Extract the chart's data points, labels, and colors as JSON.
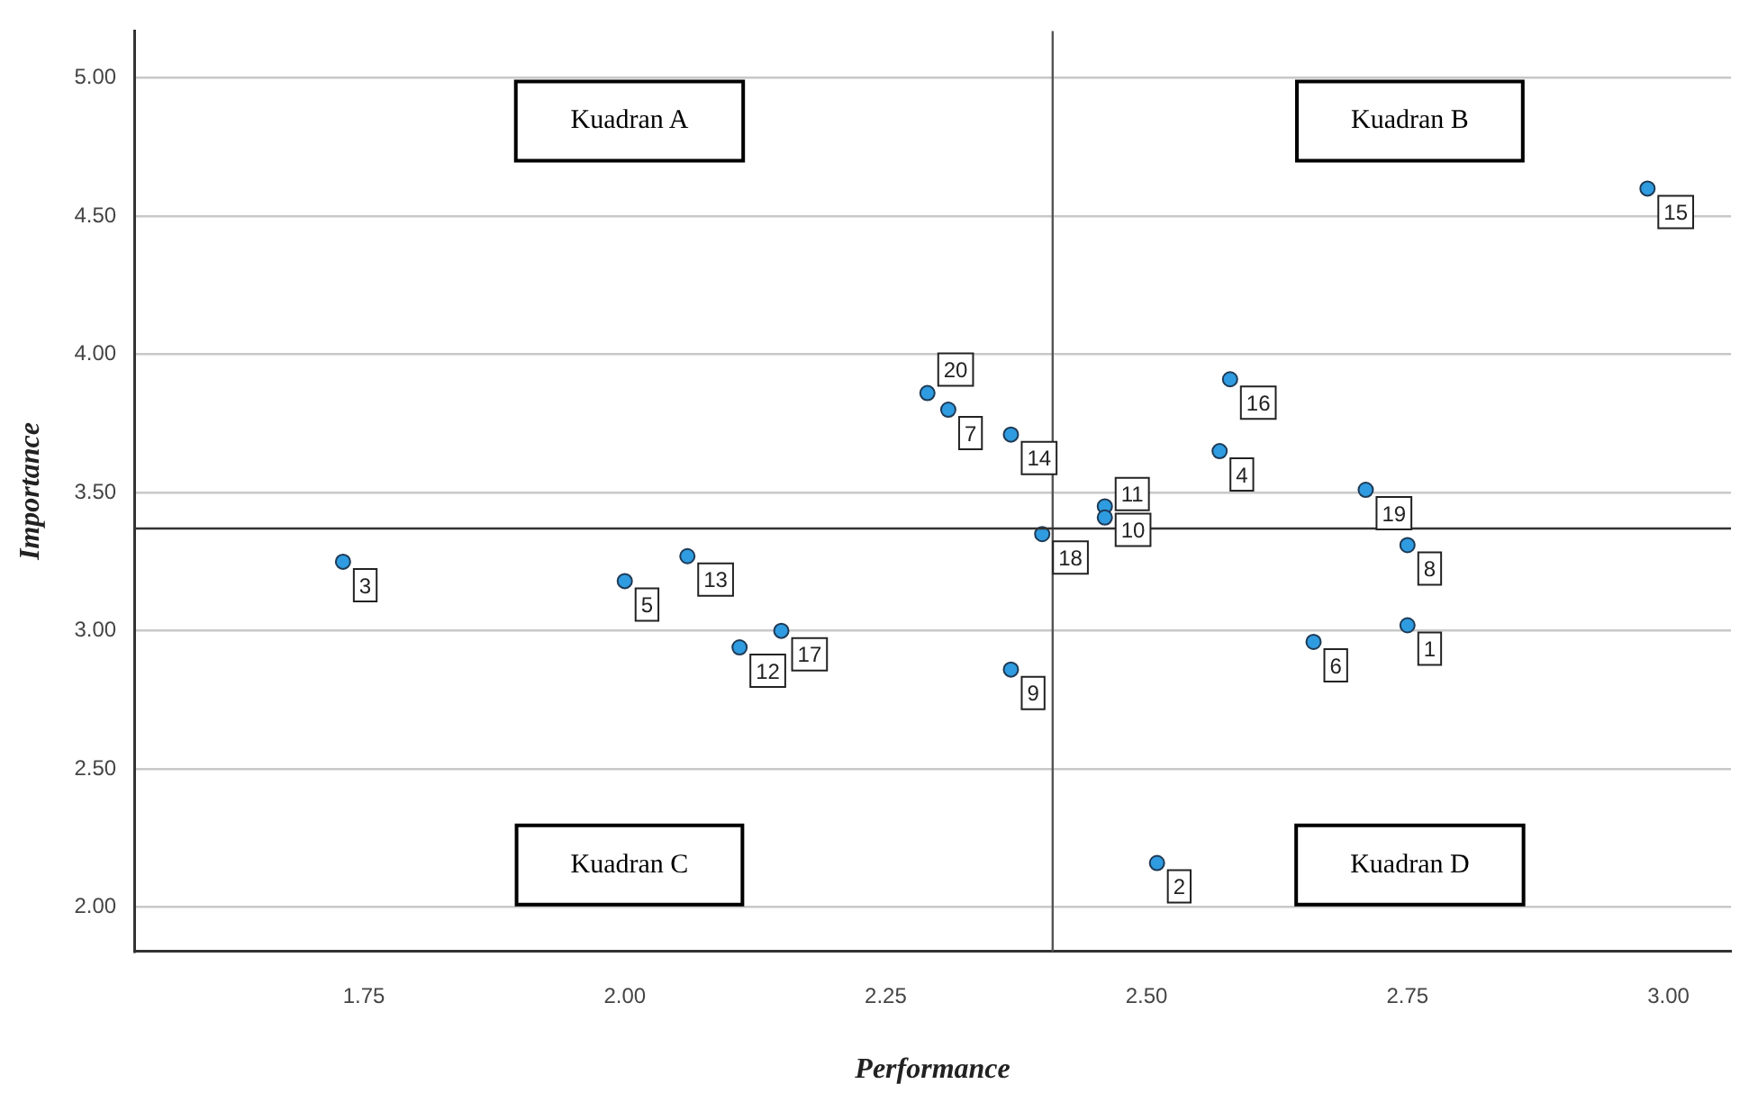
{
  "chart_data": {
    "type": "scatter",
    "xlabel": "Performance",
    "ylabel": "Importance",
    "series": [
      {
        "color": "#2f9be0",
        "x": [
          2.75,
          2.51,
          1.73,
          2.57,
          2.0,
          2.66,
          2.31,
          2.75,
          2.37,
          2.46,
          2.46,
          2.11,
          2.06,
          2.37,
          2.98,
          2.58,
          2.15,
          2.4,
          2.71,
          2.29
        ],
        "values": [
          3.02,
          2.16,
          3.25,
          3.65,
          3.18,
          2.96,
          3.8,
          3.31,
          2.86,
          3.45,
          3.41,
          2.94,
          3.27,
          3.71,
          4.6,
          3.91,
          3.0,
          3.35,
          3.51,
          3.86
        ]
      }
    ],
    "annotations": [
      "Kuadran A",
      "Kuadran B",
      "Kuadran C",
      "Kuadran D",
      {
        "text": "1",
        "x": 2.75,
        "y": 3.02
      },
      {
        "text": "2",
        "x": 2.51,
        "y": 2.16
      },
      {
        "text": "3",
        "x": 1.73,
        "y": 3.25
      },
      {
        "text": "4",
        "x": 2.57,
        "y": 3.65
      },
      {
        "text": "5",
        "x": 2.0,
        "y": 3.18
      },
      {
        "text": "6",
        "x": 2.66,
        "y": 2.96
      },
      {
        "text": "7",
        "x": 2.31,
        "y": 3.8
      },
      {
        "text": "8",
        "x": 2.75,
        "y": 3.31
      },
      {
        "text": "9",
        "x": 2.37,
        "y": 2.86
      },
      {
        "text": "10",
        "x": 2.46,
        "y": 3.45
      },
      {
        "text": "11",
        "x": 2.46,
        "y": 3.41
      },
      {
        "text": "12",
        "x": 2.11,
        "y": 2.94
      },
      {
        "text": "13",
        "x": 2.06,
        "y": 3.27
      },
      {
        "text": "14",
        "x": 2.37,
        "y": 3.71
      },
      {
        "text": "15",
        "x": 2.98,
        "y": 4.6
      },
      {
        "text": "16",
        "x": 2.58,
        "y": 3.91
      },
      {
        "text": "17",
        "x": 2.15,
        "y": 3.0
      },
      {
        "text": "18",
        "x": 2.4,
        "y": 3.35
      },
      {
        "text": "19",
        "x": 2.71,
        "y": 3.51
      },
      {
        "text": "20",
        "x": 2.29,
        "y": 3.86
      }
    ],
    "ref_lines": [
      {
        "axis": "x",
        "value": 2.41,
        "color": "#555555"
      },
      {
        "axis": "y",
        "value": 3.37,
        "color": "#333333"
      }
    ],
    "xlim": [
      1.53,
      3.06
    ],
    "ylim": [
      1.84,
      5.17
    ],
    "xticks": [
      {
        "value": 1.75,
        "label": "1.75"
      },
      {
        "value": 2,
        "label": "2.00"
      },
      {
        "value": 2.25,
        "label": "2.25"
      },
      {
        "value": 2.5,
        "label": "2.50"
      },
      {
        "value": 2.75,
        "label": "2.75"
      },
      {
        "value": 3,
        "label": "3.00"
      }
    ],
    "yticks": [
      {
        "value": 2,
        "label": "2.00"
      },
      {
        "value": 2.5,
        "label": "2.50"
      },
      {
        "value": 3,
        "label": "3.00"
      },
      {
        "value": 3.5,
        "label": "3.50"
      },
      {
        "value": 4,
        "label": "4.00"
      },
      {
        "value": 4.5,
        "label": "4.50"
      },
      {
        "value": 5,
        "label": "5.00"
      }
    ],
    "grid": "y",
    "legend": false,
    "marker": "circle"
  }
}
